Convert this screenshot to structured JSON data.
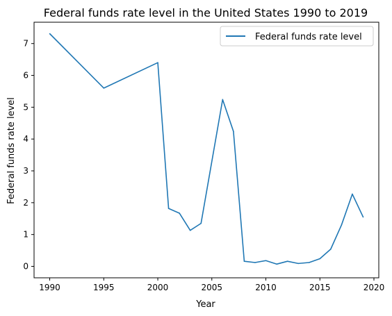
{
  "chart_data": {
    "type": "line",
    "title": "Federal funds rate level in the United States 1990 to 2019",
    "xlabel": "Year",
    "ylabel": "Federal funds rate level",
    "xlim": [
      1988.55,
      2020.45
    ],
    "ylim": [
      -0.36,
      7.67
    ],
    "xticks": [
      1990,
      1995,
      2000,
      2005,
      2010,
      2015,
      2020
    ],
    "yticks": [
      0,
      1,
      2,
      3,
      4,
      5,
      6,
      7
    ],
    "grid": false,
    "legend_position": "upper-right",
    "series_color": "#1f77b4",
    "series": [
      {
        "name": "Federal funds rate level",
        "x": [
          1990,
          1995,
          2000,
          2001,
          2002,
          2003,
          2004,
          2006,
          2007,
          2008,
          2009,
          2010,
          2011,
          2012,
          2013,
          2014,
          2015,
          2016,
          2017,
          2018,
          2019
        ],
        "y": [
          7.31,
          5.6,
          6.4,
          1.82,
          1.67,
          1.13,
          1.35,
          5.24,
          4.24,
          0.16,
          0.12,
          0.18,
          0.07,
          0.16,
          0.09,
          0.12,
          0.24,
          0.54,
          1.3,
          2.27,
          1.55
        ]
      }
    ]
  }
}
